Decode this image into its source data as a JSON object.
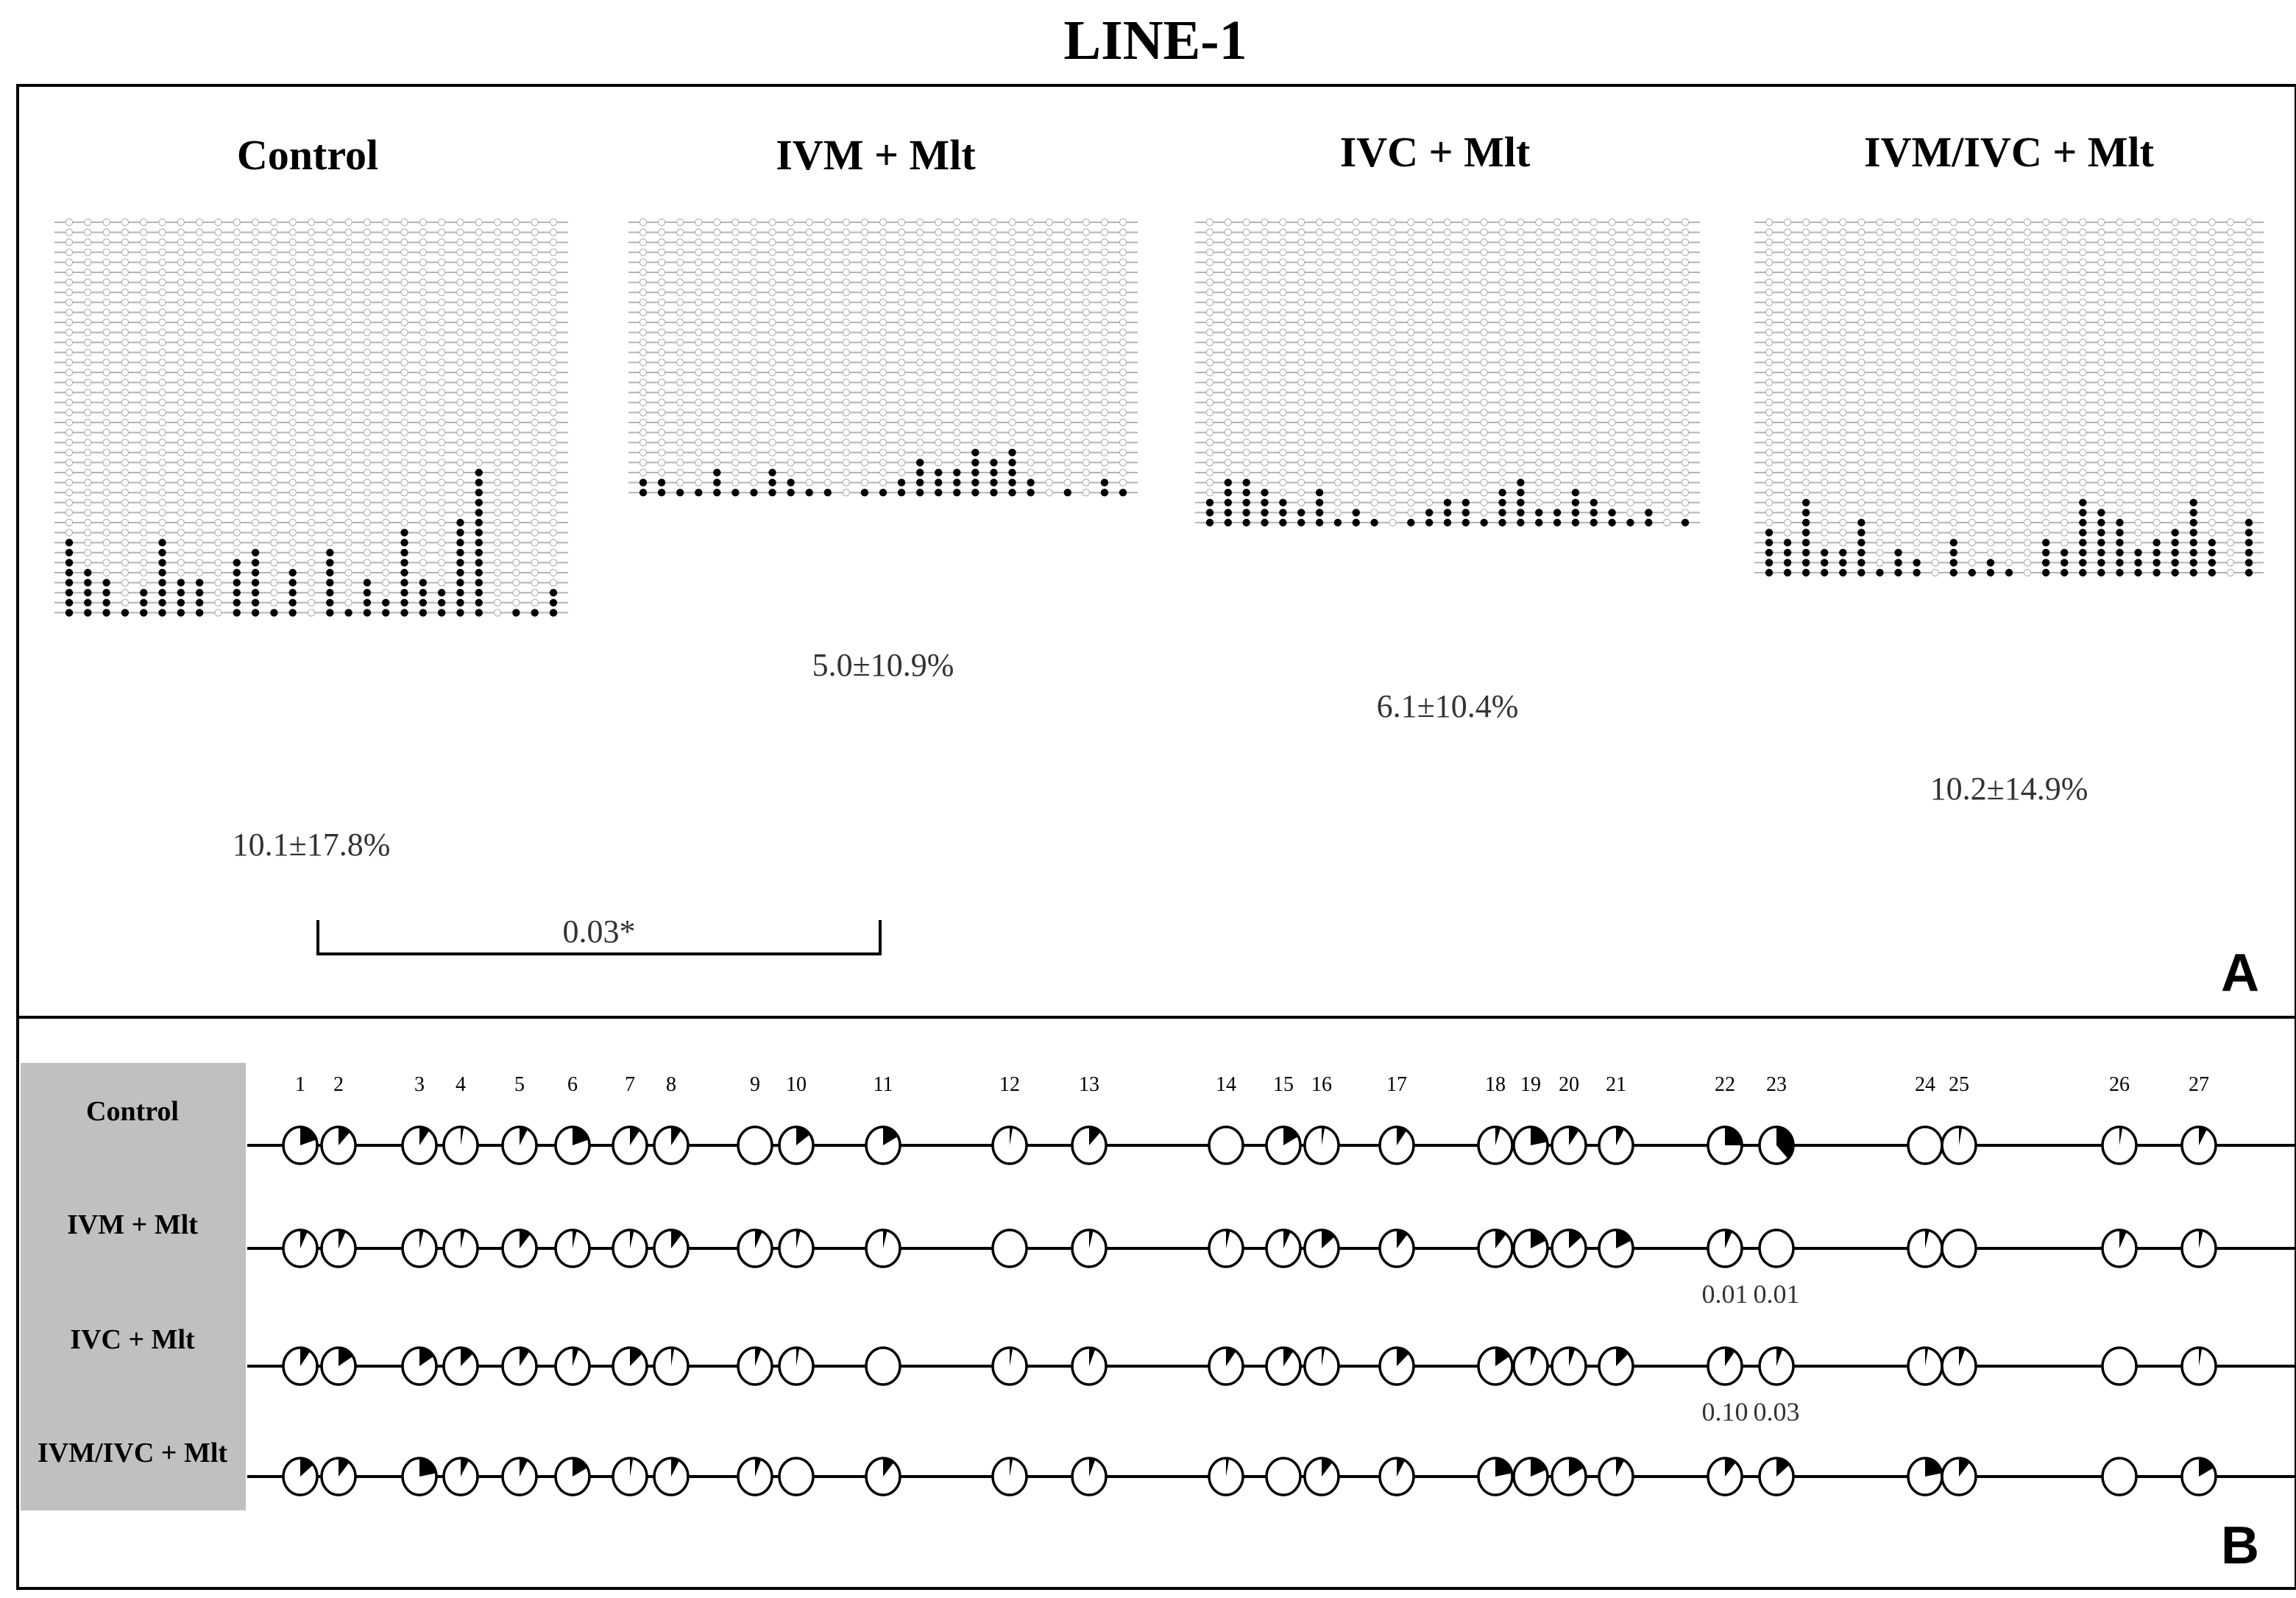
{
  "figure": {
    "title": "LINE-1",
    "panel_a_letter": "A",
    "panel_b_letter": "B",
    "colors": {
      "methylated": "#000000",
      "unmethylated": "#ffffff",
      "line": "#b4b4b4",
      "grey_box": "#c0c0c0"
    }
  },
  "panel_a": {
    "groups": [
      {
        "name": "Control",
        "summary": "10.1±17.8%",
        "n_sites": 27,
        "n_clones": 40,
        "methylated_counts": [
          8,
          5,
          4,
          1,
          3,
          8,
          4,
          4,
          0,
          6,
          7,
          1,
          5,
          0,
          7,
          1,
          4,
          2,
          9,
          4,
          3,
          10,
          15,
          0,
          1,
          1,
          3
        ]
      },
      {
        "name": "IVM + Mlt",
        "summary": "5.0±10.9%",
        "n_sites": 27,
        "n_clones": 28,
        "methylated_counts": [
          2,
          2,
          1,
          1,
          3,
          1,
          1,
          3,
          2,
          1,
          1,
          0,
          1,
          1,
          2,
          4,
          3,
          3,
          5,
          4,
          5,
          2,
          0,
          1,
          0,
          2,
          1
        ]
      },
      {
        "name": "IVC + Mlt",
        "summary": "6.1±10.4%",
        "n_sites": 27,
        "n_clones": 31,
        "methylated_counts": [
          3,
          5,
          5,
          4,
          3,
          2,
          4,
          1,
          2,
          1,
          0,
          1,
          2,
          3,
          3,
          1,
          4,
          5,
          2,
          2,
          4,
          3,
          2,
          1,
          2,
          0,
          1
        ]
      },
      {
        "name": "IVM/IVC + Mlt",
        "summary": "10.2±14.9%",
        "n_sites": 27,
        "n_clones": 36,
        "methylated_counts": [
          5,
          4,
          8,
          3,
          3,
          6,
          1,
          3,
          2,
          0,
          4,
          1,
          2,
          1,
          0,
          4,
          3,
          8,
          7,
          6,
          3,
          4,
          5,
          8,
          4,
          0,
          6
        ]
      }
    ],
    "comparison": {
      "from_group": 0,
      "to_group": 1,
      "p_value": "0.03*"
    }
  },
  "panel_b": {
    "sites": [
      "1",
      "2",
      "3",
      "4",
      "5",
      "6",
      "7",
      "8",
      "9",
      "10",
      "11",
      "12",
      "13",
      "14",
      "15",
      "16",
      "17",
      "18",
      "19",
      "20",
      "21",
      "22",
      "23",
      "24",
      "25",
      "26",
      "27"
    ],
    "rows": [
      {
        "label": "Control",
        "fractions": [
          0.2,
          0.12,
          0.1,
          0.03,
          0.08,
          0.2,
          0.1,
          0.1,
          0.0,
          0.15,
          0.17,
          0.03,
          0.12,
          0.0,
          0.17,
          0.03,
          0.1,
          0.05,
          0.22,
          0.1,
          0.08,
          0.25,
          0.38,
          0.0,
          0.03,
          0.03,
          0.08
        ],
        "annotations": []
      },
      {
        "label": "IVM + Mlt",
        "fractions": [
          0.07,
          0.07,
          0.04,
          0.04,
          0.11,
          0.04,
          0.04,
          0.11,
          0.07,
          0.04,
          0.04,
          0.0,
          0.04,
          0.04,
          0.07,
          0.14,
          0.11,
          0.11,
          0.18,
          0.14,
          0.18,
          0.07,
          0.0,
          0.04,
          0.0,
          0.07,
          0.04
        ],
        "annotations": [
          {
            "site_index": 21,
            "text": "0.01"
          },
          {
            "site_index": 22,
            "text": "0.01"
          }
        ]
      },
      {
        "label": "IVC + Mlt",
        "fractions": [
          0.1,
          0.16,
          0.16,
          0.13,
          0.1,
          0.06,
          0.13,
          0.03,
          0.06,
          0.03,
          0.0,
          0.03,
          0.06,
          0.1,
          0.1,
          0.03,
          0.13,
          0.16,
          0.06,
          0.06,
          0.13,
          0.1,
          0.06,
          0.03,
          0.06,
          0.0,
          0.03
        ],
        "annotations": [
          {
            "site_index": 21,
            "text": "0.10"
          },
          {
            "site_index": 22,
            "text": "0.03"
          }
        ]
      },
      {
        "label": "IVM/IVC + Mlt",
        "fractions": [
          0.14,
          0.11,
          0.22,
          0.08,
          0.08,
          0.17,
          0.03,
          0.08,
          0.06,
          0.0,
          0.11,
          0.03,
          0.06,
          0.03,
          0.0,
          0.11,
          0.08,
          0.22,
          0.19,
          0.17,
          0.08,
          0.11,
          0.14,
          0.22,
          0.11,
          0.0,
          0.17
        ],
        "annotations": []
      }
    ]
  }
}
